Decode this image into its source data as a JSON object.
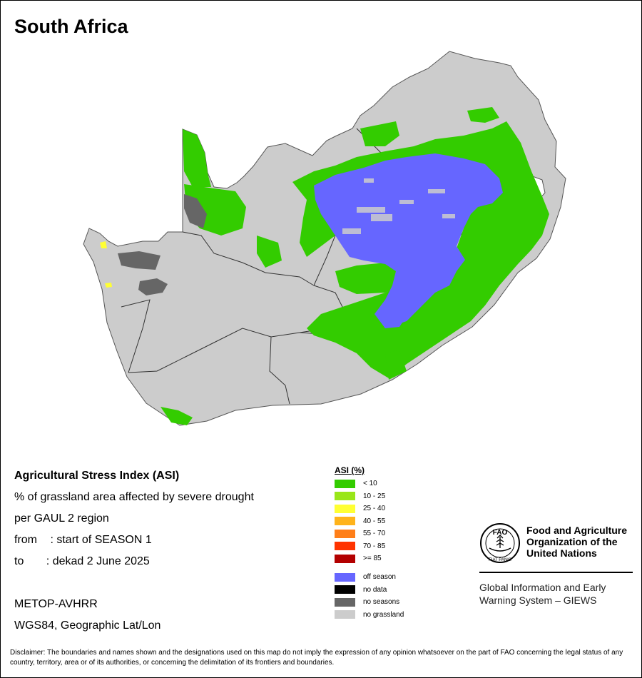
{
  "map": {
    "title": "South Africa",
    "colors": {
      "no_grassland": "#cccccc",
      "low_stress": "#33cc00",
      "off_season": "#6666ff",
      "no_seasons": "#666666",
      "yellow": "#ffff33",
      "border": "#333333",
      "water": "#ffffff"
    }
  },
  "info": {
    "heading": "Agricultural Stress Index (ASI)",
    "line1": "% of grassland area affected by severe drought",
    "line2": "per GAUL 2 region",
    "from_label": "from",
    "from_value": ": start of SEASON 1",
    "to_label": "to",
    "to_value": ": dekad 2 June 2025",
    "sensor": "METOP-AVHRR",
    "projection": "WGS84, Geographic Lat/Lon"
  },
  "legend": {
    "title": "ASI (%)",
    "classes": [
      {
        "label": "< 10",
        "color": "#33cc00"
      },
      {
        "label": "10 - 25",
        "color": "#99e619"
      },
      {
        "label": "25 - 40",
        "color": "#ffff33"
      },
      {
        "label": "40 - 55",
        "color": "#ffb31a"
      },
      {
        "label": "55 - 70",
        "color": "#ff7f19"
      },
      {
        "label": "70 - 85",
        "color": "#ff3300"
      },
      {
        "label": ">= 85",
        "color": "#b30000"
      }
    ],
    "other": [
      {
        "label": "off season",
        "color": "#6666ff"
      },
      {
        "label": "no data",
        "color": "#000000"
      },
      {
        "label": "no seasons",
        "color": "#666666"
      },
      {
        "label": "no grassland",
        "color": "#cccccc"
      }
    ]
  },
  "org": {
    "logo_text": "FAO",
    "logo_motto": "FIAT PANIS",
    "name_line1": "Food and Agriculture",
    "name_line2": "Organization of the",
    "name_line3": "United Nations",
    "giews_line1": "Global Information and Early",
    "giews_line2": "Warning System – GIEWS"
  },
  "disclaimer": "Disclaimer: The boundaries and names shown and the designations used on this map do not imply the expression of any opinion whatsoever on the part of FAO concerning the legal status of any country, territory, area or of its authorities, or concerning the delimitation of its frontiers and boundaries."
}
